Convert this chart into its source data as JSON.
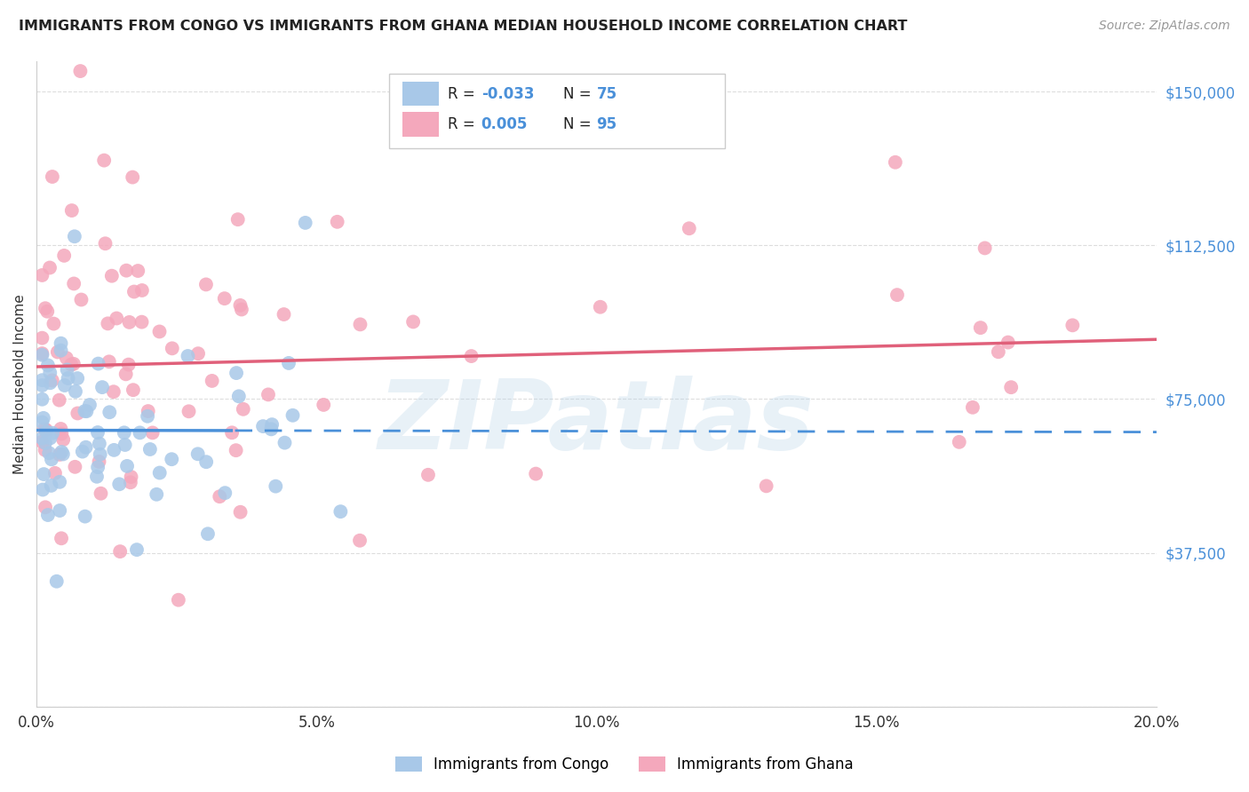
{
  "title": "IMMIGRANTS FROM CONGO VS IMMIGRANTS FROM GHANA MEDIAN HOUSEHOLD INCOME CORRELATION CHART",
  "source": "Source: ZipAtlas.com",
  "ylabel": "Median Household Income",
  "xlim": [
    0.0,
    0.2
  ],
  "ylim": [
    0,
    157500
  ],
  "congo_R": "-0.033",
  "congo_N": "75",
  "ghana_R": "0.005",
  "ghana_N": "95",
  "congo_color": "#a8c8e8",
  "ghana_color": "#f4a8bc",
  "congo_line_color": "#4a90d9",
  "ghana_line_color": "#e0607a",
  "watermark": "ZIPatlas",
  "background_color": "#ffffff",
  "grid_color": "#dddddd",
  "ytick_vals": [
    0,
    37500,
    75000,
    112500,
    150000
  ],
  "ytick_labels": [
    "",
    "$37,500",
    "$75,000",
    "$112,500",
    "$150,000"
  ],
  "xtick_vals": [
    0.0,
    0.05,
    0.1,
    0.15,
    0.2
  ],
  "xtick_labels": [
    "0.0%",
    "5.0%",
    "10.0%",
    "15.0%",
    "20.0%"
  ]
}
